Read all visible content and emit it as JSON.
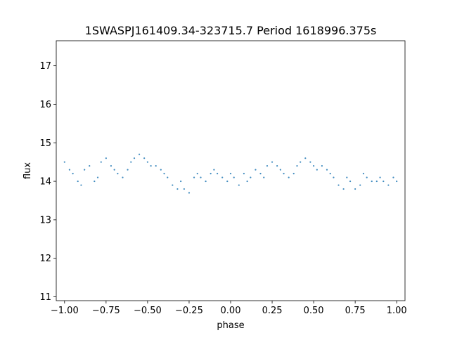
{
  "chart_data": {
    "type": "scatter",
    "title": "1SWASPJ161409.34-323715.7 Period 1618996.375s",
    "xlabel": "phase",
    "ylabel": "flux",
    "xlim": [
      -1.05,
      1.05
    ],
    "ylim": [
      10.9,
      17.65
    ],
    "xticks": [
      -1.0,
      -0.75,
      -0.5,
      -0.25,
      0.0,
      0.25,
      0.5,
      0.75,
      1.0
    ],
    "xtick_labels": [
      "−1.00",
      "−0.75",
      "−0.50",
      "−0.25",
      "0.00",
      "0.25",
      "0.50",
      "0.75",
      "1.00"
    ],
    "yticks": [
      11,
      12,
      13,
      14,
      15,
      16,
      17
    ],
    "ytick_labels": [
      "11",
      "12",
      "13",
      "14",
      "15",
      "16",
      "17"
    ],
    "grid": false,
    "legend": "none",
    "point_color": "#1f77b4",
    "series": [
      {
        "x": [
          -1.0,
          -0.97,
          -0.95,
          -0.92,
          -0.9,
          -0.88,
          -0.85,
          -0.82,
          -0.8,
          -0.78,
          -0.75,
          -0.72,
          -0.7,
          -0.68,
          -0.65,
          -0.62,
          -0.6,
          -0.58,
          -0.55,
          -0.52,
          -0.5,
          -0.48,
          -0.45,
          -0.42,
          -0.4,
          -0.38,
          -0.35,
          -0.32,
          -0.3,
          -0.28,
          -0.25,
          -0.22,
          -0.2,
          -0.18,
          -0.15,
          -0.12,
          -0.1,
          -0.08,
          -0.05,
          -0.02,
          0.0,
          0.02,
          0.05,
          0.08,
          0.1,
          0.12,
          0.15,
          0.18,
          0.2,
          0.22,
          0.25,
          0.28,
          0.3,
          0.32,
          0.35,
          0.38,
          0.4,
          0.42,
          0.45,
          0.48,
          0.5,
          0.52,
          0.55,
          0.58,
          0.6,
          0.62,
          0.65,
          0.68,
          0.7,
          0.72,
          0.75,
          0.78,
          0.8,
          0.82,
          0.85,
          0.88,
          0.9,
          0.92,
          0.95,
          0.98,
          1.0
        ],
        "y": [
          14.5,
          14.3,
          14.2,
          14.0,
          13.9,
          14.3,
          14.4,
          14.0,
          14.1,
          14.5,
          14.6,
          14.4,
          14.3,
          14.2,
          14.1,
          14.3,
          14.5,
          14.6,
          14.7,
          14.6,
          14.5,
          14.4,
          14.4,
          14.3,
          14.2,
          14.1,
          13.9,
          13.8,
          14.0,
          13.8,
          13.7,
          14.1,
          14.2,
          14.1,
          14.0,
          14.2,
          14.3,
          14.2,
          14.1,
          14.0,
          14.2,
          14.1,
          13.9,
          14.2,
          14.0,
          14.1,
          14.3,
          14.2,
          14.1,
          14.4,
          14.5,
          14.4,
          14.3,
          14.2,
          14.1,
          14.2,
          14.4,
          14.5,
          14.6,
          14.5,
          14.4,
          14.3,
          14.4,
          14.3,
          14.2,
          14.1,
          13.9,
          13.8,
          14.1,
          14.0,
          13.8,
          13.9,
          14.2,
          14.1,
          14.0,
          14.0,
          14.1,
          14.0,
          13.9,
          14.1,
          14.0
        ]
      }
    ]
  }
}
